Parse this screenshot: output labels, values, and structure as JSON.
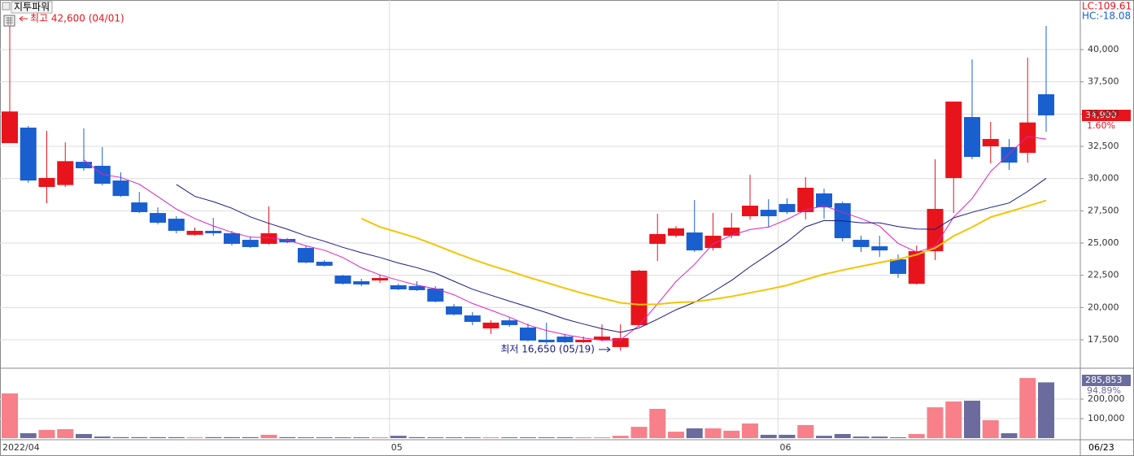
{
  "chart_data": {
    "type": "candlestick",
    "title": "지투파워",
    "categories": [
      "2022/04",
      null,
      null,
      null,
      null,
      null,
      null,
      null,
      null,
      null,
      null,
      null,
      null,
      null,
      null,
      null,
      null,
      null,
      null,
      null,
      null,
      "05",
      null,
      null,
      null,
      null,
      null,
      null,
      null,
      null,
      null,
      null,
      null,
      null,
      null,
      null,
      null,
      null,
      null,
      null,
      null,
      null,
      "06",
      null,
      null,
      null,
      null,
      null,
      null,
      null,
      null,
      null,
      null,
      null,
      null,
      null,
      null
    ],
    "cursor_date": "06/23",
    "open": [
      32750,
      33950,
      29350,
      29500,
      31300,
      30990,
      29850,
      28150,
      27330,
      26890,
      25640,
      25950,
      25760,
      25250,
      24940,
      25320,
      24620,
      23550,
      22480,
      22040,
      22100,
      21730,
      21670,
      21470,
      20090,
      19390,
      18380,
      19010,
      18450,
      17500,
      17750,
      17310,
      17500,
      16940,
      18640,
      24940,
      25570,
      25820,
      24620,
      25570,
      27080,
      27580,
      28030,
      27400,
      28850,
      28090,
      25250,
      24750,
      23740,
      21840,
      24370,
      30040,
      34770,
      32500,
      32440,
      31990,
      36540
    ],
    "high": [
      42600,
      34080,
      33700,
      32810,
      33890,
      32440,
      30480,
      28970,
      27770,
      27080,
      26200,
      26950,
      25950,
      25510,
      27840,
      25380,
      24750,
      23680,
      22540,
      22230,
      22540,
      21850,
      22040,
      21660,
      20280,
      19650,
      19010,
      19200,
      18760,
      18830,
      17950,
      17760,
      18700,
      18700,
      22920,
      27270,
      26320,
      28340,
      27330,
      27330,
      30300,
      28400,
      28470,
      30110,
      29220,
      28220,
      25570,
      25570,
      24120,
      24810,
      31490,
      35970,
      39240,
      34390,
      33070,
      39370,
      41830
    ],
    "low": [
      32750,
      29670,
      28090,
      29350,
      30610,
      29480,
      28590,
      27330,
      26450,
      25760,
      25570,
      25570,
      24810,
      24620,
      24880,
      25000,
      23430,
      23180,
      21790,
      21660,
      21910,
      21350,
      21290,
      20400,
      19390,
      18640,
      17950,
      18510,
      17380,
      17190,
      17250,
      17250,
      17380,
      16650,
      18510,
      23610,
      25440,
      24310,
      24430,
      25380,
      26830,
      26200,
      27270,
      26830,
      26890,
      25130,
      24310,
      23930,
      22290,
      21790,
      23680,
      27330,
      31490,
      31180,
      30670,
      31240,
      33630
    ],
    "close": [
      35200,
      29850,
      30050,
      31350,
      30800,
      29600,
      28650,
      27400,
      26580,
      25950,
      25950,
      25760,
      24940,
      24690,
      25760,
      25060,
      23490,
      23240,
      21850,
      21790,
      22290,
      21410,
      21350,
      20460,
      19460,
      18890,
      18830,
      18640,
      17440,
      17310,
      17310,
      17500,
      17750,
      17630,
      22860,
      25700,
      26140,
      24430,
      25570,
      26200,
      27900,
      27080,
      27400,
      29290,
      27770,
      25380,
      24690,
      24430,
      22610,
      24370,
      27650,
      35970,
      31680,
      33070,
      31240,
      34350,
      34900
    ],
    "volume": [
      229000,
      25000,
      42000,
      46000,
      21000,
      8000,
      5000,
      5000,
      5000,
      5000,
      4000,
      5000,
      5000,
      5000,
      17000,
      5000,
      4000,
      4000,
      4000,
      4000,
      4000,
      12000,
      5000,
      4000,
      4000,
      4000,
      4000,
      4000,
      4000,
      4000,
      4000,
      4000,
      4000,
      12000,
      58000,
      150000,
      33000,
      50000,
      50000,
      38000,
      75000,
      17000,
      17000,
      67000,
      12000,
      21000,
      8000,
      8000,
      4000,
      21000,
      158000,
      188000,
      192000,
      92000,
      25000,
      308000,
      285853
    ],
    "up_color": "#e8141c",
    "down_color": "#1a5fd0",
    "volume_up_color": "#f7808a",
    "volume_down_color": "#6b6b9e",
    "moving_averages": [
      {
        "period": 5,
        "color": "#e020c0"
      },
      {
        "period": 10,
        "color": "#1a1a80"
      },
      {
        "period": 20,
        "color": "#f5c400"
      }
    ],
    "ylim": [
      15360,
      43845
    ],
    "yticks": [
      {
        "value": 17500,
        "label": "17,500"
      },
      {
        "value": 20000,
        "label": "20,000"
      },
      {
        "value": 22500,
        "label": "22,500"
      },
      {
        "value": 25000,
        "label": "25,000"
      },
      {
        "value": 27500,
        "label": "27,500"
      },
      {
        "value": 30000,
        "label": "30,000"
      },
      {
        "value": 32500,
        "label": "32,500"
      },
      {
        "value": 35000,
        "label": "35,000"
      },
      {
        "value": 37500,
        "label": "37,500"
      },
      {
        "value": 40000,
        "label": "40,000"
      }
    ],
    "volume_ylim": [
      0,
      350000
    ],
    "volume_ticks": [
      {
        "value": 100000,
        "label": "100,000"
      },
      {
        "value": 200000,
        "label": "200,000"
      }
    ],
    "grid": true,
    "high_label": "최고 42,600 (04/01)",
    "low_label": "최저 16,650 (05/19)",
    "lc_label": "LC:109.61",
    "hc_label": "HC:-18.08",
    "last_price_label": "34,900",
    "change_label": "1.60%",
    "last_volume_label": "285,853",
    "volume_ratio_label": "94.89%"
  }
}
